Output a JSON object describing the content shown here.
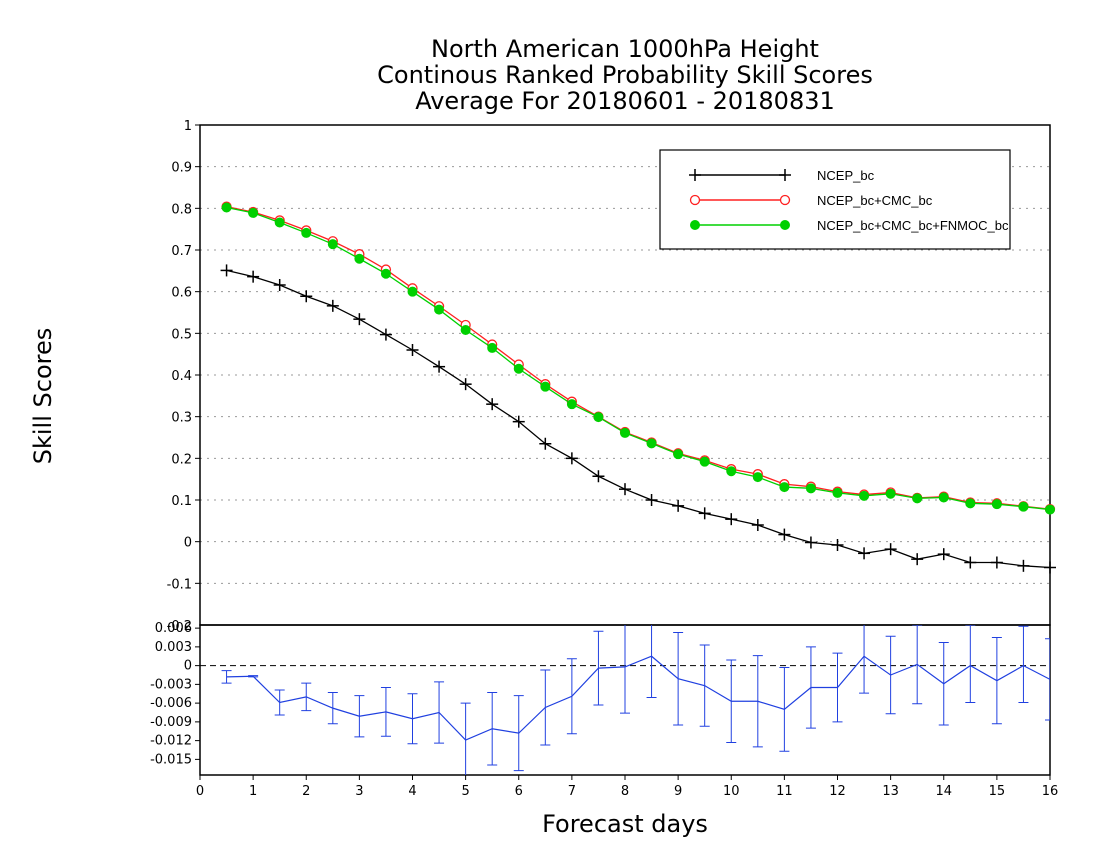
{
  "chart_data": [
    {
      "type": "line",
      "title": [
        "North American 1000hPa Height",
        "Continous Ranked Probability Skill Scores",
        "Average For 20180601 - 20180831"
      ],
      "xlabel": "Forecast days",
      "ylabel": "Skill Scores",
      "xlim": [
        0,
        16
      ],
      "ylim": [
        -0.2,
        1
      ],
      "yticks": [
        "-0.1",
        "0",
        "0.1",
        "0.2",
        "0.3",
        "0.4",
        "0.5",
        "0.6",
        "0.7",
        "0.8",
        "0.9",
        "1"
      ],
      "grid": true,
      "legend_position": "top-right",
      "x": [
        0.5,
        1,
        1.5,
        2,
        2.5,
        3,
        3.5,
        4,
        4.5,
        5,
        5.5,
        6,
        6.5,
        7,
        7.5,
        8,
        8.5,
        9,
        9.5,
        10,
        10.5,
        11,
        11.5,
        12,
        12.5,
        13,
        13.5,
        14,
        14.5,
        15,
        15.5,
        16
      ],
      "series": [
        {
          "name": "NCEP_bc",
          "color": "#000000",
          "marker": "plus",
          "values": [
            0.651,
            0.636,
            0.616,
            0.589,
            0.566,
            0.534,
            0.497,
            0.46,
            0.42,
            0.378,
            0.33,
            0.288,
            0.235,
            0.2,
            0.157,
            0.126,
            0.1,
            0.086,
            0.068,
            0.054,
            0.04,
            0.017,
            -0.002,
            -0.008,
            -0.028,
            -0.018,
            -0.042,
            -0.03,
            -0.05,
            -0.05,
            -0.058,
            -0.062
          ]
        },
        {
          "name": "NCEP_bc+CMC_bc",
          "color": "#ff2020",
          "marker": "open-circle",
          "values": [
            0.804,
            0.791,
            0.771,
            0.747,
            0.721,
            0.69,
            0.653,
            0.608,
            0.565,
            0.52,
            0.473,
            0.425,
            0.378,
            0.336,
            0.3,
            0.263,
            0.238,
            0.212,
            0.195,
            0.174,
            0.162,
            0.138,
            0.132,
            0.12,
            0.113,
            0.118,
            0.105,
            0.108,
            0.094,
            0.092,
            0.085,
            0.078
          ]
        },
        {
          "name": "NCEP_bc+CMC_bc+FNMOC_bc",
          "color": "#00d000",
          "marker": "filled-circle",
          "values": [
            0.802,
            0.789,
            0.766,
            0.741,
            0.714,
            0.679,
            0.643,
            0.6,
            0.557,
            0.508,
            0.465,
            0.415,
            0.372,
            0.33,
            0.299,
            0.261,
            0.236,
            0.21,
            0.192,
            0.169,
            0.155,
            0.131,
            0.128,
            0.117,
            0.11,
            0.115,
            0.104,
            0.106,
            0.092,
            0.09,
            0.084,
            0.077
          ]
        }
      ]
    },
    {
      "type": "line",
      "xlabel": "Forecast days",
      "xlim": [
        0,
        16
      ],
      "xticks": [
        "0",
        "1",
        "2",
        "3",
        "4",
        "5",
        "6",
        "7",
        "8",
        "9",
        "10",
        "11",
        "12",
        "13",
        "14",
        "15",
        "16"
      ],
      "ylim": [
        -0.0175,
        0.0065
      ],
      "yticks": [
        "-0.015",
        "-0.012",
        "-0.009",
        "-0.006",
        "-0.003",
        "0",
        "0.003",
        "0.006"
      ],
      "x": [
        0.5,
        1,
        1.5,
        2,
        2.5,
        3,
        3.5,
        4,
        4.5,
        5,
        5.5,
        6,
        6.5,
        7,
        7.5,
        8,
        8.5,
        9,
        9.5,
        10,
        10.5,
        11,
        11.5,
        12,
        12.5,
        13,
        13.5,
        14,
        14.5,
        15,
        15.5,
        16
      ],
      "series": [
        {
          "name": "",
          "color": "#2040e0",
          "error_bars": true,
          "values": [
            -0.0018,
            -0.0017,
            -0.0059,
            -0.005,
            -0.0068,
            -0.0081,
            -0.0074,
            -0.0085,
            -0.0075,
            -0.0119,
            -0.0101,
            -0.0108,
            -0.0067,
            -0.0049,
            -0.0004,
            -0.0002,
            0.0015,
            -0.0021,
            -0.0032,
            -0.0057,
            -0.0057,
            -0.007,
            -0.0035,
            -0.0035,
            0.0015,
            -0.0015,
            0.0002,
            -0.0029,
            0.0,
            -0.0024,
            0.0,
            -0.0022
          ],
          "err_low": [
            -0.0028,
            -0.0018,
            -0.0079,
            -0.0072,
            -0.0093,
            -0.0114,
            -0.0113,
            -0.0125,
            -0.0124,
            -0.0178,
            -0.0159,
            -0.0168,
            -0.0127,
            -0.0109,
            -0.0063,
            -0.0076,
            -0.0051,
            -0.0095,
            -0.0097,
            -0.0123,
            -0.013,
            -0.0137,
            -0.01,
            -0.009,
            -0.0044,
            -0.0077,
            -0.0061,
            -0.0095,
            -0.0059,
            -0.0093,
            -0.0059,
            -0.0087
          ],
          "err_high": [
            -0.0008,
            -0.0016,
            -0.0039,
            -0.0028,
            -0.0043,
            -0.0048,
            -0.0035,
            -0.0045,
            -0.0026,
            -0.006,
            -0.0043,
            -0.0048,
            -0.0007,
            0.0011,
            0.0055,
            0.0072,
            0.0081,
            0.0053,
            0.0033,
            0.0009,
            0.0016,
            -0.0003,
            0.003,
            0.002,
            0.0074,
            0.0047,
            0.0065,
            0.0037,
            0.0065,
            0.0045,
            0.0063,
            0.0043
          ]
        }
      ]
    }
  ]
}
